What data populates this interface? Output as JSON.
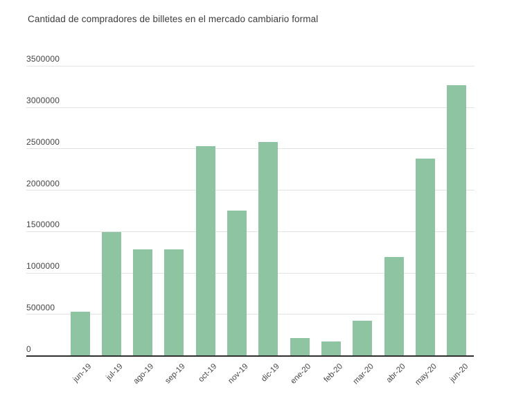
{
  "title": "Cantidad de compradores de billetes en el mercado cambiario formal",
  "chart_data": {
    "type": "bar",
    "title": "Cantidad de compradores de billetes en el mercado cambiario formal",
    "categories": [
      "jun-19",
      "jul-19",
      "ago-19",
      "sep-19",
      "oct-19",
      "nov-19",
      "dic-19",
      "ene-20",
      "feb-20",
      "mar-20",
      "abr-20",
      "may-20",
      "jun-20"
    ],
    "values": [
      530000,
      1490000,
      1285000,
      1285000,
      2535000,
      1755000,
      2580000,
      215000,
      175000,
      420000,
      1190000,
      2380000,
      3270000
    ],
    "xlabel": "",
    "ylabel": "",
    "ylim": [
      0,
      3500000
    ],
    "yticks": [
      0,
      500000,
      1000000,
      1500000,
      2000000,
      2500000,
      3000000,
      3500000
    ],
    "grid": "horizontal",
    "legend": "none",
    "colors": {
      "bar": "#8ec4a2",
      "gridline": "#e3e3e3",
      "axis": "#2e2e2e",
      "title_text": "#3c3c3c",
      "tick_text": "#454545",
      "background": "#ffffff"
    }
  }
}
